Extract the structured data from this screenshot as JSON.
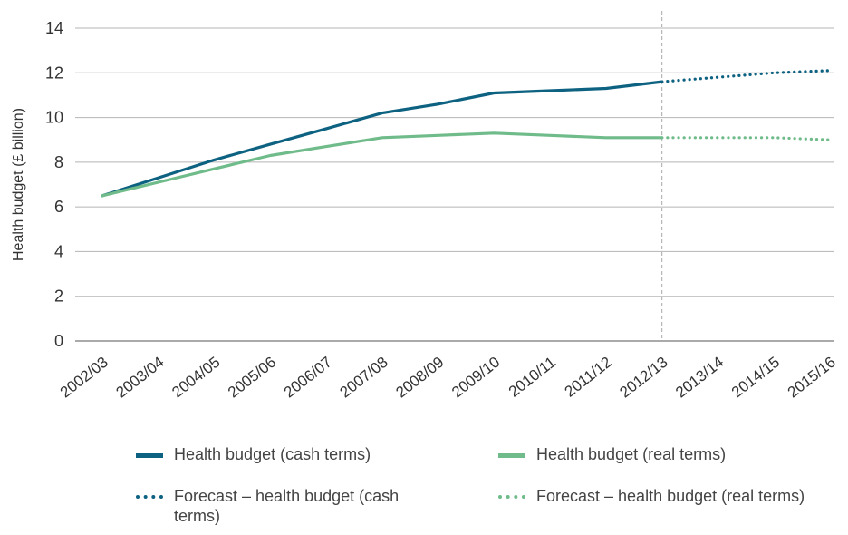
{
  "chart_data": {
    "type": "line",
    "ylabel": "Health budget (£ billion)",
    "xlabel": "",
    "categories": [
      "2002/03",
      "2003/04",
      "2004/05",
      "2005/06",
      "2006/07",
      "2007/08",
      "2008/09",
      "2009/10",
      "2010/11",
      "2011/12",
      "2012/13",
      "2013/14",
      "2014/15",
      "2015/16"
    ],
    "ylim": [
      0,
      14
    ],
    "yticks": [
      "0",
      "2",
      "4",
      "6",
      "8",
      "10",
      "12",
      "14"
    ],
    "forecast_start": "2012/13",
    "series": [
      {
        "name": "Health budget (cash terms)",
        "style": "solid",
        "color": "#0e6281",
        "values": [
          6.5,
          7.3,
          8.1,
          8.8,
          9.5,
          10.2,
          10.6,
          11.1,
          11.2,
          11.3,
          11.6,
          null,
          null,
          null
        ]
      },
      {
        "name": "Health budget (real terms)",
        "style": "solid",
        "color": "#6fbb8a",
        "values": [
          6.5,
          7.1,
          7.7,
          8.3,
          8.7,
          9.1,
          9.2,
          9.3,
          9.2,
          9.1,
          9.1,
          null,
          null,
          null
        ]
      },
      {
        "name": "Forecast – health budget (cash terms)",
        "style": "dotted",
        "color": "#0e6281",
        "values": [
          null,
          null,
          null,
          null,
          null,
          null,
          null,
          null,
          null,
          null,
          11.6,
          11.8,
          12.0,
          12.1
        ]
      },
      {
        "name": "Forecast – health budget (real terms)",
        "style": "dotted",
        "color": "#6fbb8a",
        "values": [
          null,
          null,
          null,
          null,
          null,
          null,
          null,
          null,
          null,
          null,
          9.1,
          9.1,
          9.1,
          9.0
        ]
      }
    ],
    "grid": true,
    "legend_position": "bottom",
    "colors": {
      "axis_text": "#333333",
      "grid": "#b5b5b5",
      "baseline": "#777777",
      "divider": "#a8a8a8"
    }
  }
}
